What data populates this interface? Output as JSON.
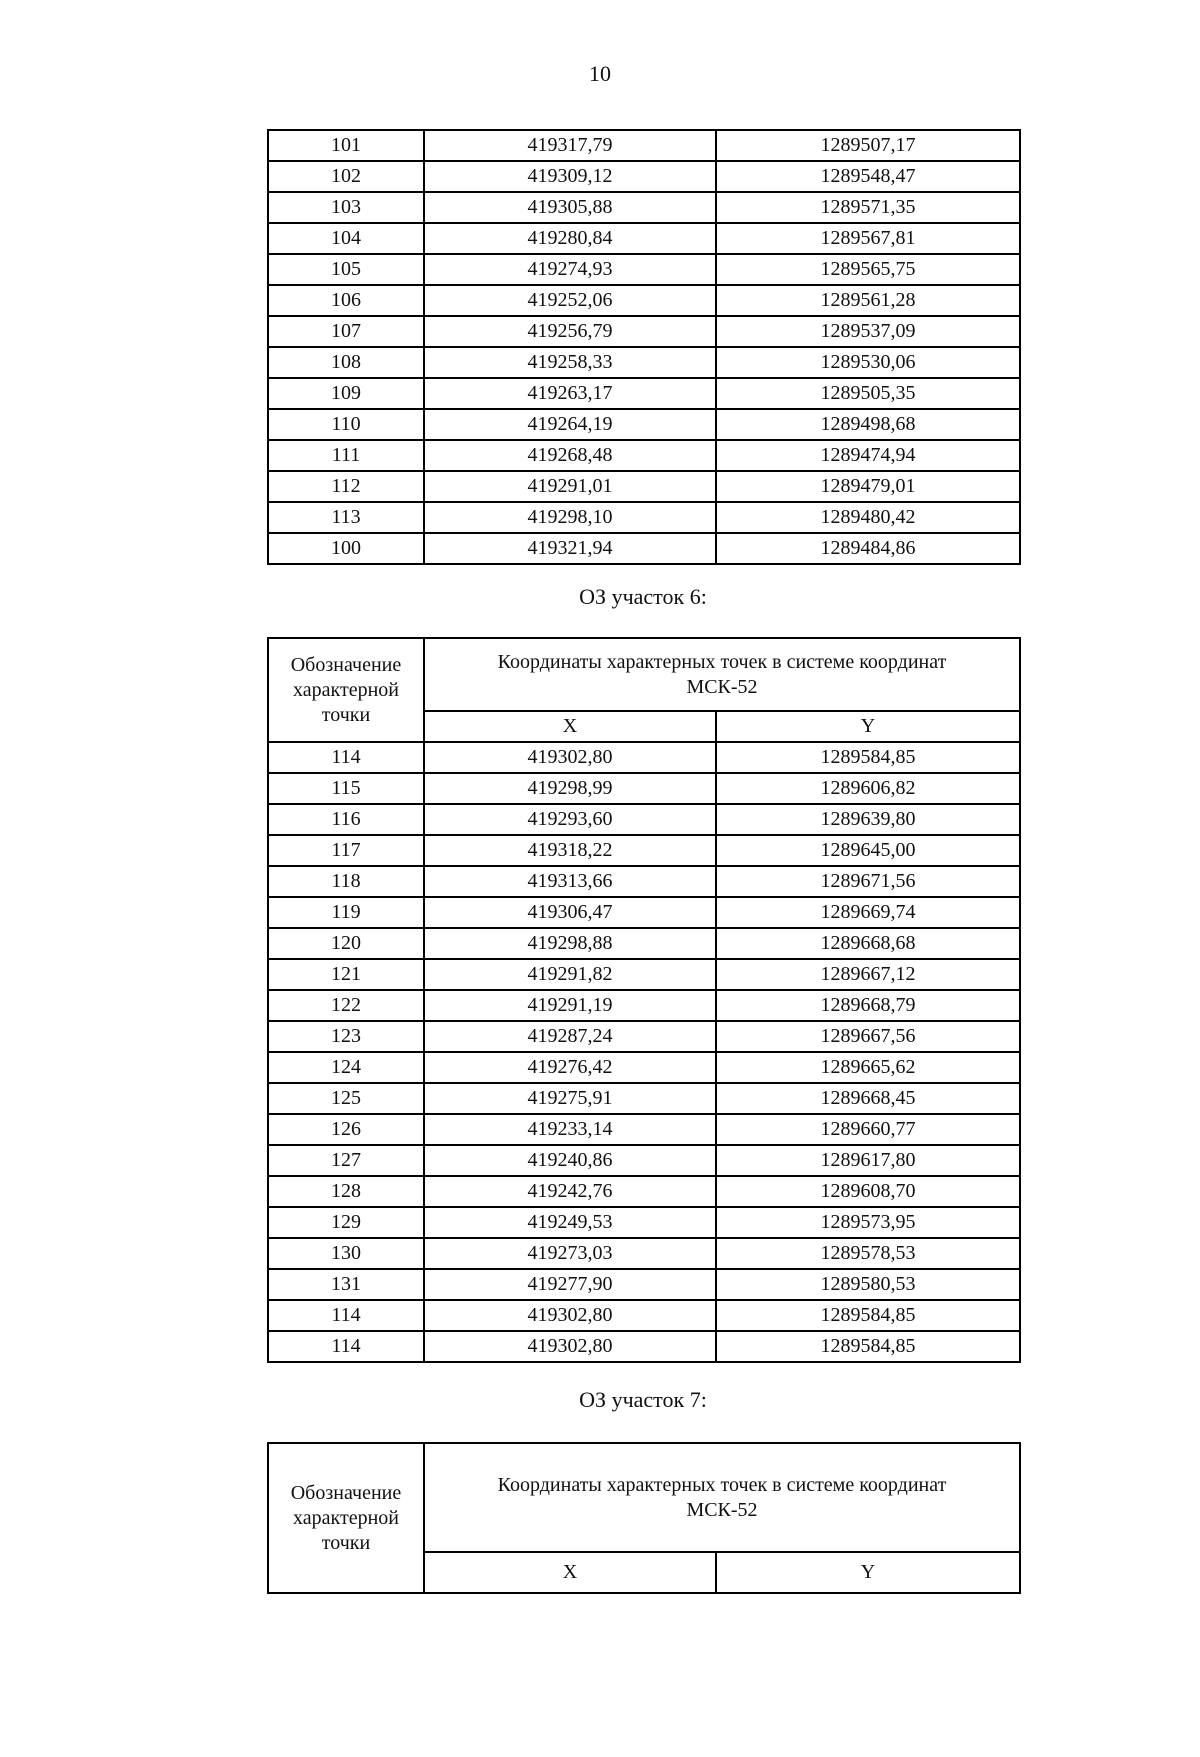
{
  "page": {
    "number": "10"
  },
  "continuation_table": {
    "rows": [
      [
        "101",
        "419317,79",
        "1289507,17"
      ],
      [
        "102",
        "419309,12",
        "1289548,47"
      ],
      [
        "103",
        "419305,88",
        "1289571,35"
      ],
      [
        "104",
        "419280,84",
        "1289567,81"
      ],
      [
        "105",
        "419274,93",
        "1289565,75"
      ],
      [
        "106",
        "419252,06",
        "1289561,28"
      ],
      [
        "107",
        "419256,79",
        "1289537,09"
      ],
      [
        "108",
        "419258,33",
        "1289530,06"
      ],
      [
        "109",
        "419263,17",
        "1289505,35"
      ],
      [
        "110",
        "419264,19",
        "1289498,68"
      ],
      [
        "111",
        "419268,48",
        "1289474,94"
      ],
      [
        "112",
        "419291,01",
        "1289479,01"
      ],
      [
        "113",
        "419298,10",
        "1289480,42"
      ],
      [
        "100",
        "419321,94",
        "1289484,86"
      ]
    ]
  },
  "section_6": {
    "heading": "ОЗ участок 6:",
    "table": {
      "point_header": "Обозначение характерной точки",
      "coords_header": "Координаты характерных точек в системе координат МСК-52",
      "x_label": "X",
      "y_label": "Y",
      "rows": [
        [
          "114",
          "419302,80",
          "1289584,85"
        ],
        [
          "115",
          "419298,99",
          "1289606,82"
        ],
        [
          "116",
          "419293,60",
          "1289639,80"
        ],
        [
          "117",
          "419318,22",
          "1289645,00"
        ],
        [
          "118",
          "419313,66",
          "1289671,56"
        ],
        [
          "119",
          "419306,47",
          "1289669,74"
        ],
        [
          "120",
          "419298,88",
          "1289668,68"
        ],
        [
          "121",
          "419291,82",
          "1289667,12"
        ],
        [
          "122",
          "419291,19",
          "1289668,79"
        ],
        [
          "123",
          "419287,24",
          "1289667,56"
        ],
        [
          "124",
          "419276,42",
          "1289665,62"
        ],
        [
          "125",
          "419275,91",
          "1289668,45"
        ],
        [
          "126",
          "419233,14",
          "1289660,77"
        ],
        [
          "127",
          "419240,86",
          "1289617,80"
        ],
        [
          "128",
          "419242,76",
          "1289608,70"
        ],
        [
          "129",
          "419249,53",
          "1289573,95"
        ],
        [
          "130",
          "419273,03",
          "1289578,53"
        ],
        [
          "131",
          "419277,90",
          "1289580,53"
        ],
        [
          "114",
          "419302,80",
          "1289584,85"
        ],
        [
          "114",
          "419302,80",
          "1289584,85"
        ]
      ]
    }
  },
  "section_7": {
    "heading": "ОЗ участок 7:",
    "table": {
      "point_header": "Обозначение характерной точки",
      "coords_header": "Координаты характерных точек в системе координат МСК-52",
      "x_label": "X",
      "y_label": "Y",
      "rows": []
    }
  }
}
